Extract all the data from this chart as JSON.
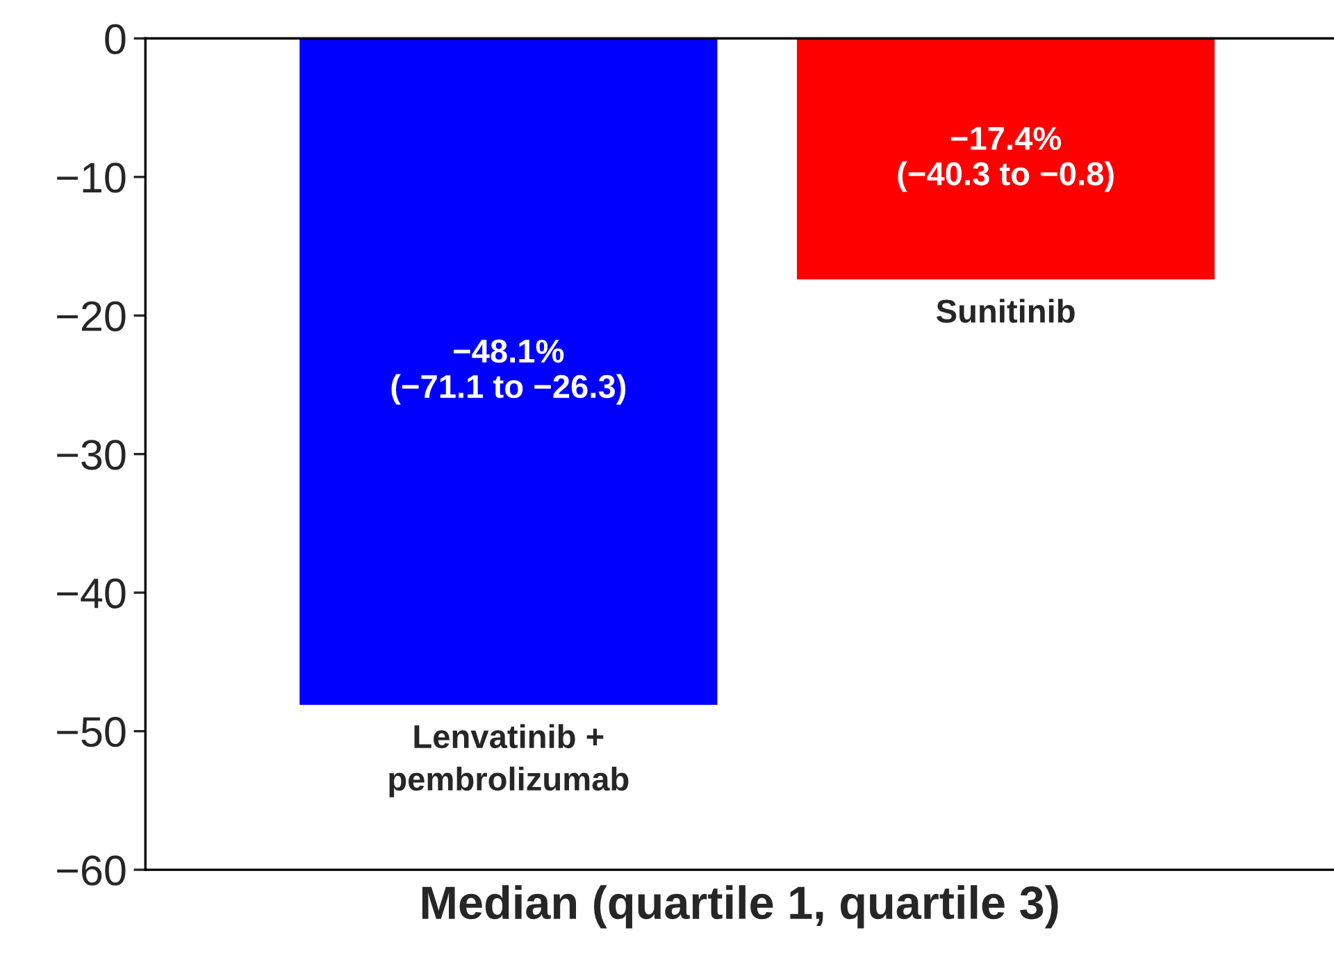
{
  "chart_data": {
    "type": "bar",
    "xlabel": "Median (quartile 1, quartile 3)",
    "categories": [
      "Lenvatinib +\npembrolizumab",
      "Sunitinib"
    ],
    "values": [
      -48.1,
      -17.4
    ],
    "colors": [
      "#0000ff",
      "#ff0000"
    ],
    "value_labels": [
      "−48.1%\n(−71.1 to −26.3)",
      "−17.4%\n(−40.3 to −0.8)"
    ],
    "ylim": [
      -60,
      0
    ],
    "yticks": [
      {
        "value": 0,
        "label": "0"
      },
      {
        "value": -10,
        "label": "−10"
      },
      {
        "value": -20,
        "label": "−20"
      },
      {
        "value": -30,
        "label": "−30"
      },
      {
        "value": -40,
        "label": "−40"
      },
      {
        "value": -50,
        "label": "−50"
      },
      {
        "value": -60,
        "label": "−60"
      }
    ],
    "grid": false
  }
}
